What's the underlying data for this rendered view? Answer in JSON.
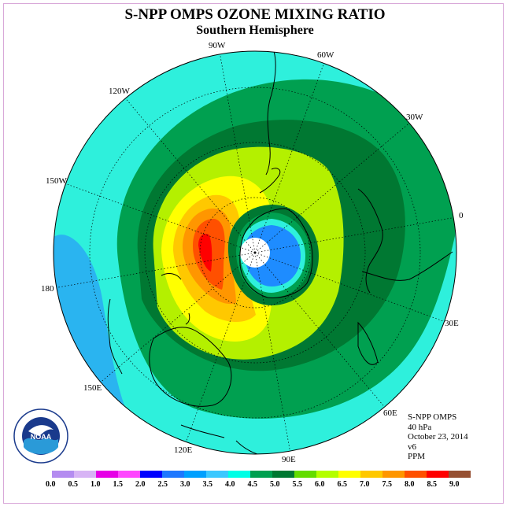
{
  "title": "S-NPP OMPS OZONE MIXING RATIO",
  "subtitle": "Southern Hemisphere",
  "longitude_labels": [
    "90W",
    "60W",
    "120W",
    "30W",
    "150W",
    "0",
    "180",
    "30E",
    "150E",
    "60E",
    "120E",
    "90E"
  ],
  "info": {
    "instrument": "S-NPP OMPS",
    "pressure": "40 hPa",
    "date": "October 23, 2014",
    "version": "v6",
    "units": "PPM"
  },
  "logo_text": "NOAA",
  "logo_ring_text": "NATIONAL OCEANIC AND ATMOSPHERIC ADMINISTRATION U.S. DEPARTMENT OF COMMERCE",
  "legend": {
    "ticks": [
      "0.0",
      "0.5",
      "1.0",
      "1.5",
      "2.0",
      "2.5",
      "3.0",
      "3.5",
      "4.0",
      "4.5",
      "5.0",
      "5.5",
      "6.0",
      "6.5",
      "7.0",
      "7.5",
      "8.0",
      "8.5",
      "9.0"
    ],
    "colors": [
      "#b48cf0",
      "#d7b4f5",
      "#e600e6",
      "#ff46ff",
      "#0000ff",
      "#1e78ff",
      "#00a0ff",
      "#3cc8ff",
      "#00ffe6",
      "#00a050",
      "#007832",
      "#64dc00",
      "#b4ff00",
      "#ffff00",
      "#ffc800",
      "#ff9600",
      "#ff5000",
      "#ff0000",
      "#965032"
    ]
  }
}
